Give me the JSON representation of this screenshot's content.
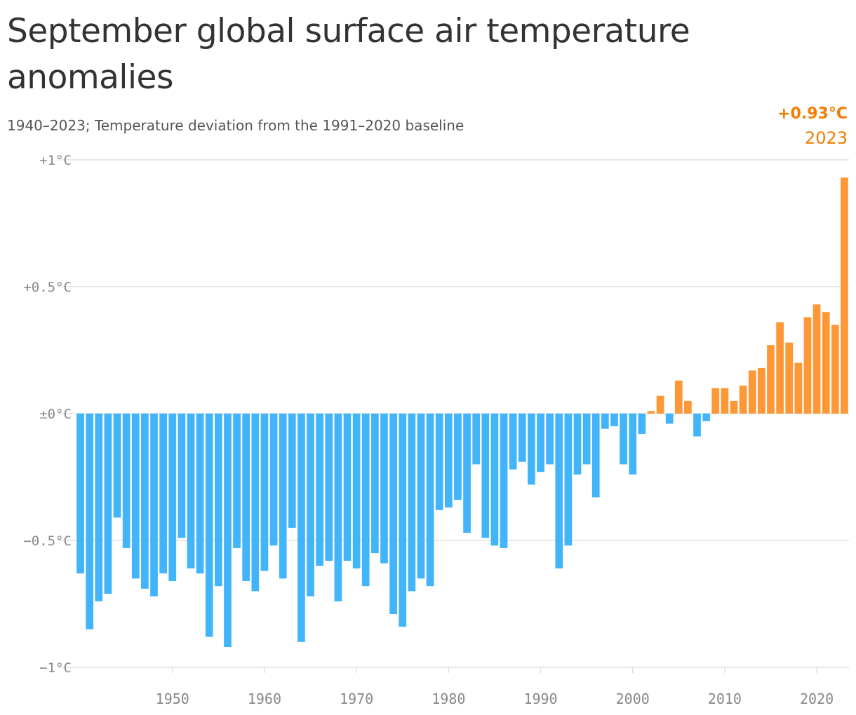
{
  "title": "September global surface air temperature anomalies",
  "subtitle": "1940–2023; Temperature deviation from the 1991–2020 baseline",
  "callout": {
    "value": "+0.93°C",
    "year": "2023"
  },
  "colors": {
    "negative": "#42b4fa",
    "positive": "#fe9735",
    "callout": "#f57c00",
    "grid": "#e0e0e0",
    "tick": "#888888"
  },
  "chart_data": {
    "type": "bar",
    "title": "September global surface air temperature anomalies",
    "subtitle": "1940–2023; Temperature deviation from the 1991–2020 baseline",
    "xlabel": "",
    "ylabel": "",
    "ylim": [
      -1,
      1
    ],
    "grid": true,
    "y_ticks": [
      {
        "value": 1,
        "label": "+1°C"
      },
      {
        "value": 0.5,
        "label": "+0.5°C"
      },
      {
        "value": 0,
        "label": "±0°C"
      },
      {
        "value": -0.5,
        "label": "−0.5°C"
      },
      {
        "value": -1,
        "label": "−1°C"
      }
    ],
    "x_ticks": [
      {
        "value": 1950,
        "label": "1950"
      },
      {
        "value": 1960,
        "label": "1960"
      },
      {
        "value": 1970,
        "label": "1970"
      },
      {
        "value": 1980,
        "label": "1980"
      },
      {
        "value": 1990,
        "label": "1990"
      },
      {
        "value": 2000,
        "label": "2000"
      },
      {
        "value": 2010,
        "label": "2010"
      },
      {
        "value": 2020,
        "label": "2020"
      }
    ],
    "categories": [
      1940,
      1941,
      1942,
      1943,
      1944,
      1945,
      1946,
      1947,
      1948,
      1949,
      1950,
      1951,
      1952,
      1953,
      1954,
      1955,
      1956,
      1957,
      1958,
      1959,
      1960,
      1961,
      1962,
      1963,
      1964,
      1965,
      1966,
      1967,
      1968,
      1969,
      1970,
      1971,
      1972,
      1973,
      1974,
      1975,
      1976,
      1977,
      1978,
      1979,
      1980,
      1981,
      1982,
      1983,
      1984,
      1985,
      1986,
      1987,
      1988,
      1989,
      1990,
      1991,
      1992,
      1993,
      1994,
      1995,
      1996,
      1997,
      1998,
      1999,
      2000,
      2001,
      2002,
      2003,
      2004,
      2005,
      2006,
      2007,
      2008,
      2009,
      2010,
      2011,
      2012,
      2013,
      2014,
      2015,
      2016,
      2017,
      2018,
      2019,
      2020,
      2021,
      2022,
      2023
    ],
    "values": [
      -0.63,
      -0.85,
      -0.74,
      -0.71,
      -0.41,
      -0.53,
      -0.65,
      -0.69,
      -0.72,
      -0.63,
      -0.66,
      -0.49,
      -0.61,
      -0.63,
      -0.88,
      -0.68,
      -0.92,
      -0.53,
      -0.66,
      -0.7,
      -0.62,
      -0.52,
      -0.65,
      -0.45,
      -0.9,
      -0.72,
      -0.6,
      -0.58,
      -0.74,
      -0.58,
      -0.61,
      -0.68,
      -0.55,
      -0.59,
      -0.79,
      -0.84,
      -0.7,
      -0.65,
      -0.68,
      -0.38,
      -0.37,
      -0.34,
      -0.47,
      -0.2,
      -0.49,
      -0.52,
      -0.53,
      -0.22,
      -0.19,
      -0.28,
      -0.23,
      -0.2,
      -0.61,
      -0.52,
      -0.24,
      -0.2,
      -0.33,
      -0.06,
      -0.05,
      -0.2,
      -0.24,
      -0.08,
      0.01,
      0.07,
      -0.04,
      0.13,
      0.05,
      -0.09,
      -0.03,
      0.1,
      0.1,
      0.05,
      0.11,
      0.17,
      0.18,
      0.27,
      0.36,
      0.28,
      0.2,
      0.38,
      0.43,
      0.4,
      0.35,
      0.93
    ],
    "highlight": {
      "year": 2023,
      "value": 0.93,
      "label": "+0.93°C"
    }
  }
}
